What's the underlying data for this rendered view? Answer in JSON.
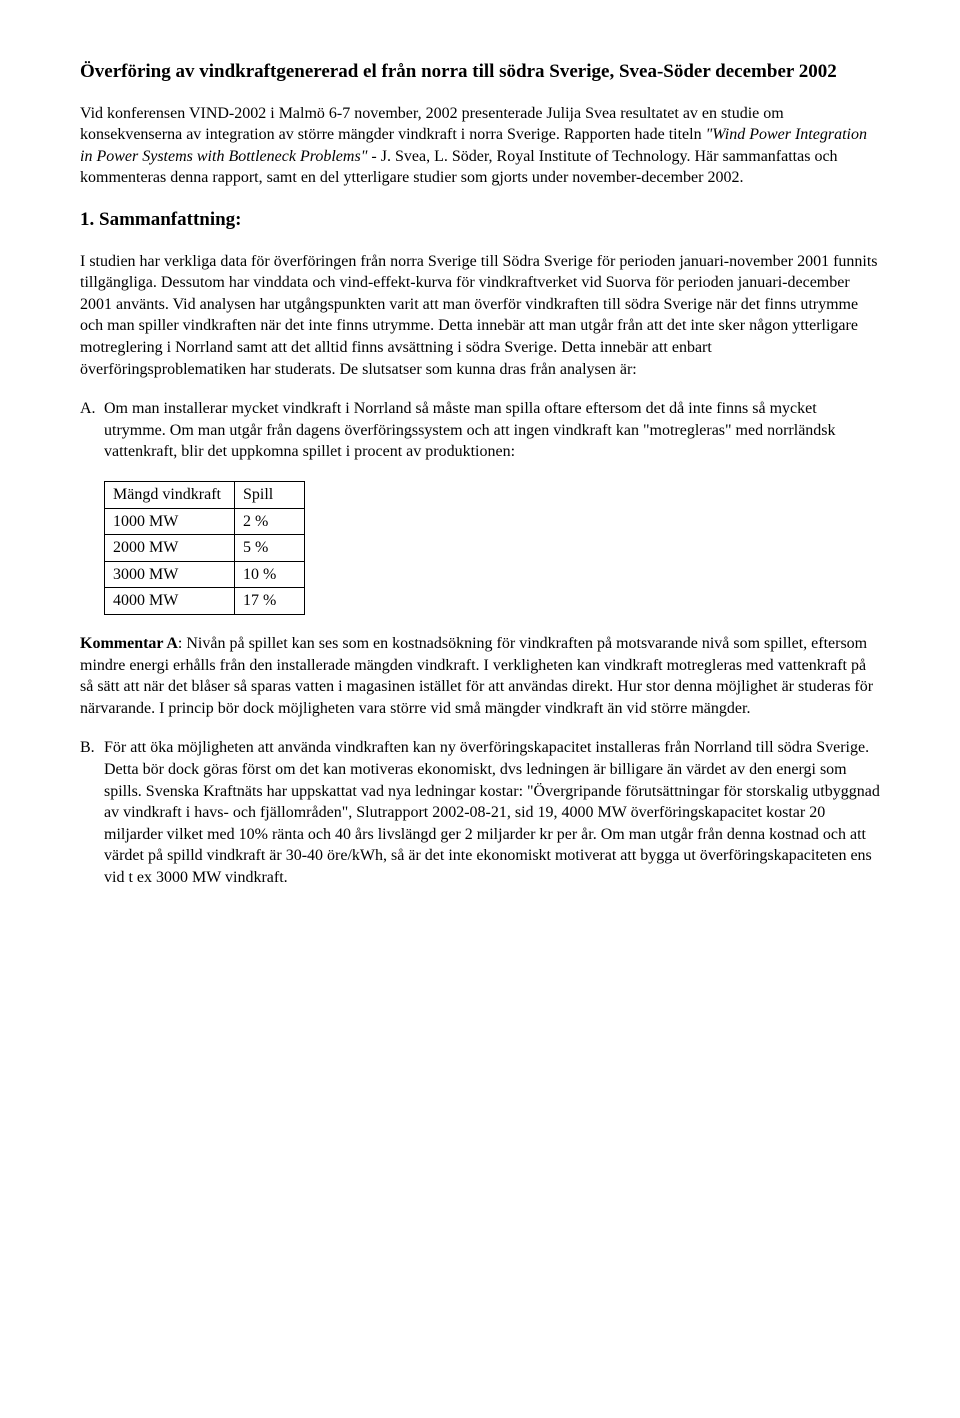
{
  "title": "Överföring av vindkraftgenererad el från norra till södra Sverige, Svea-Söder december 2002",
  "intro_p1_pre": "Vid konferensen VIND-2002 i Malmö 6-7 november, 2002 presenterade Julija Svea resultatet av en studie om konsekvenserna av integration av större mängder vindkraft i norra Sverige. Rapporten hade titeln ",
  "intro_p1_italic": "\"Wind Power Integration in Power Systems with Bottleneck Problems\"",
  "intro_p1_post": " - J. Svea,  L. Söder, Royal Institute of Technology. Här sammanfattas och kommenteras denna rapport, samt en del ytterligare studier som gjorts under november-december 2002.",
  "section1_heading": "1. Sammanfattning:",
  "section1_p1": "I studien har verkliga data för överföringen från norra Sverige till Södra Sverige för perioden januari-november 2001 funnits tillgängliga. Dessutom har vinddata och vind-effekt-kurva för vindkraftverket vid Suorva för perioden januari-december 2001 använts. Vid analysen har utgångspunkten varit att man överför vindkraften till södra Sverige när det finns utrymme och man spiller vindkraften när det inte finns utrymme. Detta innebär att man utgår från att det inte sker någon ytterligare motreglering i Norrland samt att det alltid finns avsättning i södra Sverige. Detta innebär att enbart överföringsproblematiken har studerats. De slutsatser som kunna dras från analysen är:",
  "item_a_marker": "A.",
  "item_a_text": "Om man installerar mycket vindkraft i Norrland så måste man spilla oftare eftersom det då inte finns så mycket utrymme. Om man utgår från dagens överföringssystem och att ingen vindkraft kan \"motregleras\" med norrländsk vattenkraft, blir det uppkomna spillet i procent av produktionen:",
  "table": {
    "columns": [
      "Mängd vindkraft",
      "Spill"
    ],
    "rows": [
      [
        "1000 MW",
        "2 %"
      ],
      [
        "2000 MW",
        "5 %"
      ],
      [
        "3000 MW",
        "10 %"
      ],
      [
        "4000 MW",
        "17 %"
      ]
    ],
    "border_color": "#000000",
    "col1_width": 130,
    "col2_width": 70
  },
  "comment_a_label": "Kommentar A",
  "comment_a_text": ": Nivån på spillet kan ses som en kostnadsökning för vindkraften på motsvarande nivå som spillet, eftersom mindre energi erhålls från den installerade mängden vindkraft. I verkligheten kan vindkraft motregleras med vattenkraft på så sätt att när det blåser så sparas vatten i magasinen istället för att användas direkt. Hur stor denna möjlighet är studeras för närvarande. I princip bör dock möjligheten vara större vid små mängder vindkraft än vid större mängder.",
  "item_b_marker": "B.",
  "item_b_text": "För att öka möjligheten att använda vindkraften kan ny överföringskapacitet installeras från Norrland till södra Sverige. Detta bör dock göras först om det kan motiveras ekonomiskt, dvs ledningen är billigare än värdet av den energi som spills. Svenska Kraftnäts har uppskattat vad nya ledningar kostar: \"Övergripande förutsättningar för storskalig utbyggnad av vindkraft i havs- och fjällområden\", Slutrapport 2002-08-21, sid 19, 4000 MW överföringskapacitet kostar 20 miljarder vilket med 10% ränta och 40 års livslängd ger 2 miljarder kr per år. Om man utgår från denna kostnad och att värdet på spilld vindkraft är 30-40 öre/kWh, så är det inte ekonomiskt motiverat att bygga ut överföringskapaciteten ens vid t ex 3000 MW vindkraft."
}
